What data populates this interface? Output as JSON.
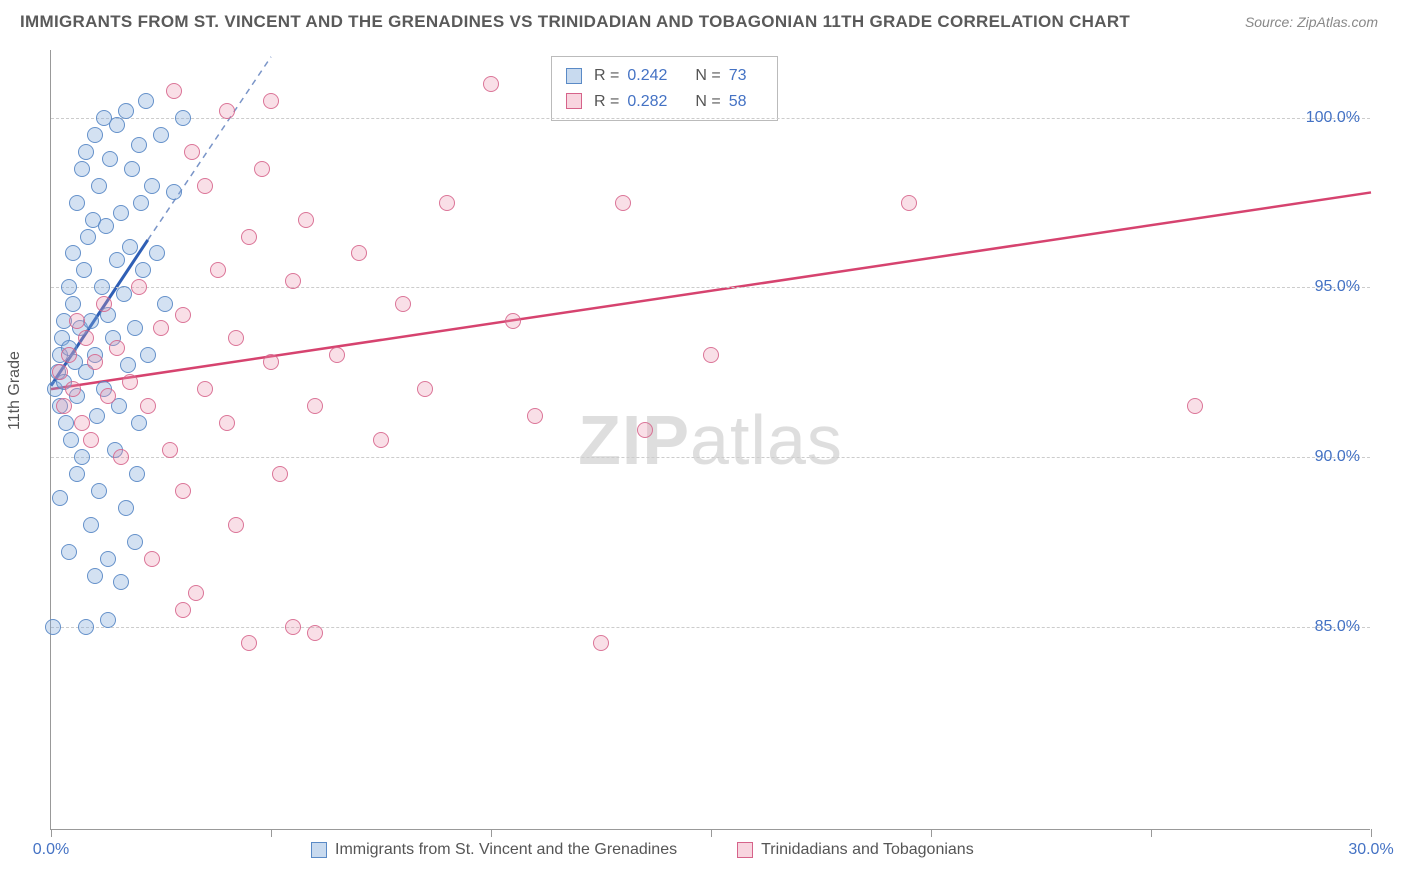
{
  "title": "IMMIGRANTS FROM ST. VINCENT AND THE GRENADINES VS TRINIDADIAN AND TOBAGONIAN 11TH GRADE CORRELATION CHART",
  "source": "Source: ZipAtlas.com",
  "ylabel": "11th Grade",
  "watermark_zip": "ZIP",
  "watermark_atlas": "atlas",
  "chart": {
    "type": "scatter",
    "xlim": [
      0,
      30
    ],
    "ylim": [
      79,
      102
    ],
    "xticks": [
      0,
      5,
      10,
      15,
      20,
      25,
      30
    ],
    "xtick_labels": {
      "0": "0.0%",
      "30": "30.0%"
    },
    "yticks": [
      85,
      90,
      95,
      100
    ],
    "ytick_labels": [
      "85.0%",
      "90.0%",
      "95.0%",
      "100.0%"
    ],
    "background_color": "#ffffff",
    "grid_color": "#cccccc",
    "axis_color": "#999999",
    "label_color": "#4472c4",
    "marker_size": 16,
    "series": [
      {
        "name": "Immigrants from St. Vincent and the Grenadines",
        "short": "blue",
        "color_fill": "rgba(130,170,218,0.35)",
        "color_stroke": "#5a8ac6",
        "R": "0.242",
        "N": "73",
        "trend_solid": {
          "x1": 0,
          "y1": 92.1,
          "x2": 2.2,
          "y2": 96.4
        },
        "trend_dash": {
          "x1": 2.2,
          "y1": 96.4,
          "x2": 5.0,
          "y2": 101.8
        },
        "points": [
          [
            0.1,
            92.0
          ],
          [
            0.15,
            92.5
          ],
          [
            0.2,
            93.0
          ],
          [
            0.2,
            91.5
          ],
          [
            0.25,
            93.5
          ],
          [
            0.3,
            92.2
          ],
          [
            0.3,
            94.0
          ],
          [
            0.35,
            91.0
          ],
          [
            0.4,
            95.0
          ],
          [
            0.4,
            93.2
          ],
          [
            0.45,
            90.5
          ],
          [
            0.5,
            96.0
          ],
          [
            0.5,
            94.5
          ],
          [
            0.55,
            92.8
          ],
          [
            0.6,
            97.5
          ],
          [
            0.6,
            91.8
          ],
          [
            0.65,
            93.8
          ],
          [
            0.7,
            98.5
          ],
          [
            0.7,
            90.0
          ],
          [
            0.75,
            95.5
          ],
          [
            0.8,
            99.0
          ],
          [
            0.8,
            92.5
          ],
          [
            0.85,
            96.5
          ],
          [
            0.9,
            94.0
          ],
          [
            0.9,
            88.0
          ],
          [
            0.95,
            97.0
          ],
          [
            1.0,
            99.5
          ],
          [
            1.0,
            93.0
          ],
          [
            1.05,
            91.2
          ],
          [
            1.1,
            98.0
          ],
          [
            1.1,
            89.0
          ],
          [
            1.15,
            95.0
          ],
          [
            1.2,
            100.0
          ],
          [
            1.2,
            92.0
          ],
          [
            1.25,
            96.8
          ],
          [
            1.3,
            94.2
          ],
          [
            1.3,
            87.0
          ],
          [
            1.35,
            98.8
          ],
          [
            1.4,
            93.5
          ],
          [
            1.45,
            90.2
          ],
          [
            1.5,
            99.8
          ],
          [
            1.5,
            95.8
          ],
          [
            1.55,
            91.5
          ],
          [
            1.6,
            97.2
          ],
          [
            1.65,
            94.8
          ],
          [
            1.7,
            100.2
          ],
          [
            1.7,
            88.5
          ],
          [
            1.75,
            92.7
          ],
          [
            1.8,
            96.2
          ],
          [
            1.85,
            98.5
          ],
          [
            1.9,
            93.8
          ],
          [
            1.95,
            89.5
          ],
          [
            2.0,
            99.2
          ],
          [
            2.0,
            91.0
          ],
          [
            2.05,
            97.5
          ],
          [
            2.1,
            95.5
          ],
          [
            2.15,
            100.5
          ],
          [
            2.2,
            93.0
          ],
          [
            2.3,
            98.0
          ],
          [
            2.4,
            96.0
          ],
          [
            2.5,
            99.5
          ],
          [
            2.6,
            94.5
          ],
          [
            2.8,
            97.8
          ],
          [
            3.0,
            100.0
          ],
          [
            0.2,
            88.8
          ],
          [
            0.4,
            87.2
          ],
          [
            0.8,
            85.0
          ],
          [
            1.0,
            86.5
          ],
          [
            1.3,
            85.2
          ],
          [
            0.05,
            85.0
          ],
          [
            0.6,
            89.5
          ],
          [
            1.6,
            86.3
          ],
          [
            1.9,
            87.5
          ]
        ]
      },
      {
        "name": "Trinidadians and Tobagonians",
        "short": "pink",
        "color_fill": "rgba(236,150,175,0.3)",
        "color_stroke": "#d6638a",
        "R": "0.282",
        "N": "58",
        "trend_solid": {
          "x1": 0,
          "y1": 92.0,
          "x2": 30,
          "y2": 97.8
        },
        "points": [
          [
            0.2,
            92.5
          ],
          [
            0.3,
            91.5
          ],
          [
            0.4,
            93.0
          ],
          [
            0.5,
            92.0
          ],
          [
            0.6,
            94.0
          ],
          [
            0.7,
            91.0
          ],
          [
            0.8,
            93.5
          ],
          [
            0.9,
            90.5
          ],
          [
            1.0,
            92.8
          ],
          [
            1.2,
            94.5
          ],
          [
            1.3,
            91.8
          ],
          [
            1.5,
            93.2
          ],
          [
            1.6,
            90.0
          ],
          [
            1.8,
            92.2
          ],
          [
            2.0,
            95.0
          ],
          [
            2.2,
            91.5
          ],
          [
            2.5,
            93.8
          ],
          [
            2.7,
            90.2
          ],
          [
            2.8,
            100.8
          ],
          [
            3.0,
            94.2
          ],
          [
            3.0,
            89.0
          ],
          [
            3.2,
            99.0
          ],
          [
            3.3,
            86.0
          ],
          [
            3.5,
            92.0
          ],
          [
            3.5,
            98.0
          ],
          [
            3.8,
            95.5
          ],
          [
            4.0,
            91.0
          ],
          [
            4.0,
            100.2
          ],
          [
            4.2,
            93.5
          ],
          [
            4.5,
            96.5
          ],
          [
            4.5,
            84.5
          ],
          [
            4.8,
            98.5
          ],
          [
            5.0,
            92.8
          ],
          [
            5.0,
            100.5
          ],
          [
            5.2,
            89.5
          ],
          [
            5.5,
            95.2
          ],
          [
            5.5,
            85.0
          ],
          [
            5.8,
            97.0
          ],
          [
            6.0,
            91.5
          ],
          [
            6.0,
            84.8
          ],
          [
            6.5,
            93.0
          ],
          [
            7.0,
            96.0
          ],
          [
            7.5,
            90.5
          ],
          [
            8.0,
            94.5
          ],
          [
            8.5,
            92.0
          ],
          [
            9.0,
            97.5
          ],
          [
            10.0,
            101.0
          ],
          [
            10.5,
            94.0
          ],
          [
            11.0,
            91.2
          ],
          [
            12.5,
            84.5
          ],
          [
            13.0,
            97.5
          ],
          [
            13.5,
            90.8
          ],
          [
            15.0,
            93.0
          ],
          [
            19.5,
            97.5
          ],
          [
            26.0,
            91.5
          ],
          [
            2.3,
            87.0
          ],
          [
            3.0,
            85.5
          ],
          [
            4.2,
            88.0
          ]
        ]
      }
    ]
  },
  "bottom_legend": [
    {
      "swatch": "blue",
      "label": "Immigrants from St. Vincent and the Grenadines"
    },
    {
      "swatch": "pink",
      "label": "Trinidadians and Tobagonians"
    }
  ]
}
